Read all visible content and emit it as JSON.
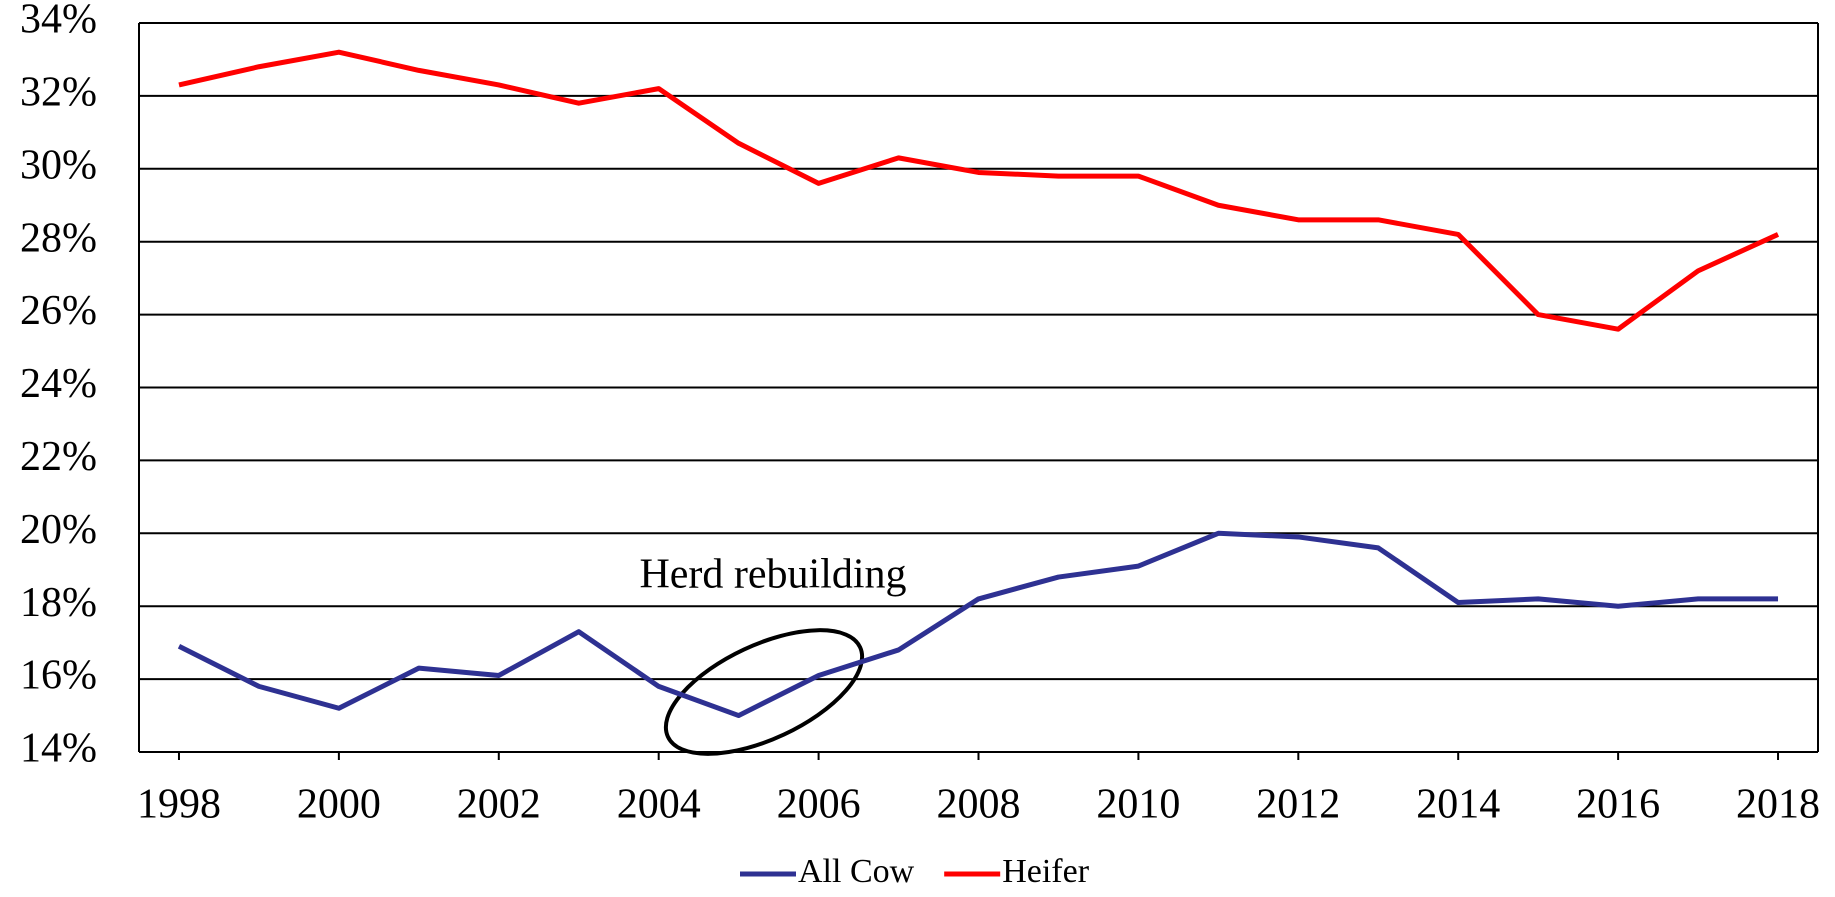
{
  "chart_data": {
    "type": "line",
    "annotation": "Herd rebuilding",
    "x": [
      1998,
      1999,
      2000,
      2001,
      2002,
      2003,
      2004,
      2005,
      2006,
      2007,
      2008,
      2009,
      2010,
      2011,
      2012,
      2013,
      2014,
      2015,
      2016,
      2017,
      2018
    ],
    "series": [
      {
        "name": "All Cow",
        "color": "#2e3192",
        "values": [
          16.9,
          15.8,
          15.2,
          16.3,
          16.1,
          17.3,
          15.8,
          15.0,
          16.1,
          16.8,
          18.2,
          18.8,
          19.1,
          20.0,
          19.9,
          19.6,
          18.1,
          18.2,
          18.0,
          18.2,
          18.2
        ]
      },
      {
        "name": "Heifer",
        "color": "#ff0000",
        "values": [
          32.3,
          32.8,
          33.2,
          32.7,
          32.3,
          31.8,
          32.2,
          30.7,
          29.6,
          30.3,
          29.9,
          29.8,
          29.8,
          29.0,
          28.6,
          28.6,
          28.2,
          26.0,
          25.6,
          27.2,
          28.2
        ]
      }
    ],
    "xlim": [
      1997.5,
      2018.5
    ],
    "xticks": [
      1998,
      2000,
      2002,
      2004,
      2006,
      2008,
      2010,
      2012,
      2014,
      2016,
      2018
    ],
    "ylim": [
      14,
      34
    ],
    "yticks": [
      {
        "value": 14,
        "label": "14%"
      },
      {
        "value": 16,
        "label": "16%"
      },
      {
        "value": 18,
        "label": "18%"
      },
      {
        "value": 20,
        "label": "20%"
      },
      {
        "value": 22,
        "label": "22%"
      },
      {
        "value": 24,
        "label": "24%"
      },
      {
        "value": 26,
        "label": "26%"
      },
      {
        "value": 28,
        "label": "28%"
      },
      {
        "value": 30,
        "label": "30%"
      },
      {
        "value": 32,
        "label": "32%"
      },
      {
        "value": 34,
        "label": "34%"
      }
    ],
    "grid": true,
    "legend": "bottom"
  }
}
